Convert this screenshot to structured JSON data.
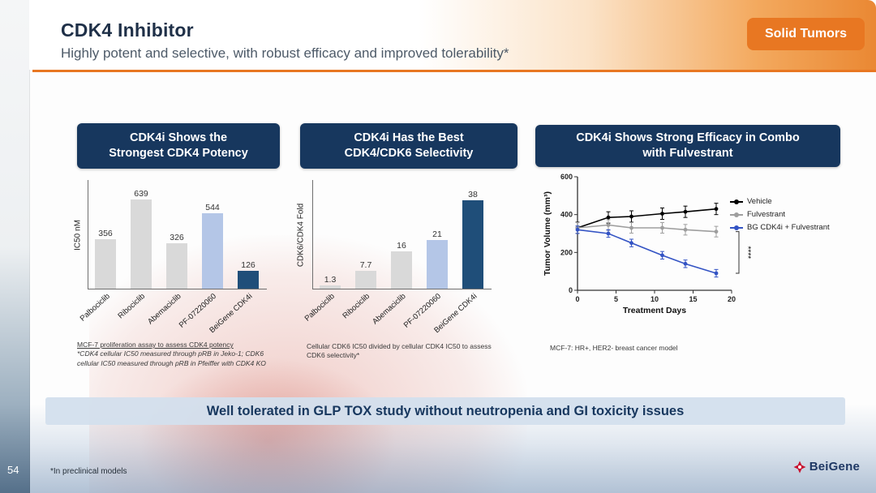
{
  "slide": {
    "title": "CDK4 Inhibitor",
    "subtitle": "Highly potent and selective, with robust efficacy and improved tolerability*",
    "tag": "Solid Tumors",
    "page_number": "54",
    "footnote": "*In preclinical models",
    "banner": "Well tolerated in GLP TOX study without neutropenia and GI toxicity issues",
    "logo_text": "BeiGene",
    "accent_orange": "#e87722",
    "accent_navy": "#17375e"
  },
  "panels": [
    {
      "header_line1": "CDK4i Shows the",
      "header_line2": "Strongest CDK4 Potency",
      "footnote": "MCF-7 proliferation assay to assess CDK4 potency",
      "footnote_italic": "*CDK4 cellular IC50 measured through pRB in Jeko-1; CDK6 cellular IC50 measured through pRB in Pfeiffer with CDK4 KO"
    },
    {
      "header_line1": "CDK4i Has the Best",
      "header_line2": "CDK4/CDK6 Selectivity",
      "footnote": "Cellular CDK6 IC50 divided by cellular CDK4 IC50 to assess CDK6 selectivity*"
    },
    {
      "header_line1": "CDK4i Shows Strong Efficacy in Combo",
      "header_line2": "with Fulvestrant",
      "footnote": "MCF-7: HR+, HER2- breast cancer model"
    }
  ],
  "chart_data": [
    {
      "type": "bar",
      "title": "CDK4i Shows the Strongest CDK4 Potency",
      "ylabel": "IC50 nM",
      "categories": [
        "Palbociclib",
        "Ribociclib",
        "Abemaciclib",
        "PF-07220060",
        "BeiGene CDK4i"
      ],
      "values": [
        356,
        639,
        326,
        544,
        126
      ],
      "bar_colors": [
        "#d9d9d9",
        "#d9d9d9",
        "#d9d9d9",
        "#b4c6e7",
        "#1f4e79"
      ],
      "ylim": [
        0,
        700
      ],
      "grid": false
    },
    {
      "type": "bar",
      "title": "CDK4i Has the Best CDK4/CDK6 Selectivity",
      "ylabel": "CDK6/CDK4 Fold",
      "categories": [
        "Palbociclib",
        "Ribociclib",
        "Abemaciclib",
        "PF-07220060",
        "BeiGene CDK4i"
      ],
      "values": [
        1.3,
        7.7,
        16,
        21,
        38
      ],
      "bar_colors": [
        "#d9d9d9",
        "#d9d9d9",
        "#d9d9d9",
        "#b4c6e7",
        "#1f4e79"
      ],
      "ylim": [
        0,
        42
      ],
      "grid": false
    },
    {
      "type": "line",
      "title": "CDK4i Shows Strong Efficacy in Combo with Fulvestrant",
      "xlabel": "Treatment Days",
      "ylabel": "Tumor Volume (mm³)",
      "xlim": [
        0,
        20
      ],
      "ylim": [
        0,
        600
      ],
      "xticks": [
        0,
        5,
        10,
        15,
        20
      ],
      "yticks": [
        0,
        200,
        400,
        600
      ],
      "x": [
        0,
        4,
        7,
        11,
        14,
        18
      ],
      "series": [
        {
          "name": "Vehicle",
          "color": "#000000",
          "values": [
            330,
            385,
            390,
            405,
            415,
            430
          ],
          "error": 30
        },
        {
          "name": "Fulvestrant",
          "color": "#9e9e9e",
          "values": [
            330,
            345,
            330,
            330,
            320,
            310
          ],
          "error": 28
        },
        {
          "name": "BG CDK4i + Fulvestrant",
          "color": "#3353c4",
          "values": [
            320,
            300,
            250,
            185,
            140,
            90
          ],
          "error": 20
        }
      ],
      "significance": "****",
      "legend_position": "right",
      "grid": false
    }
  ]
}
